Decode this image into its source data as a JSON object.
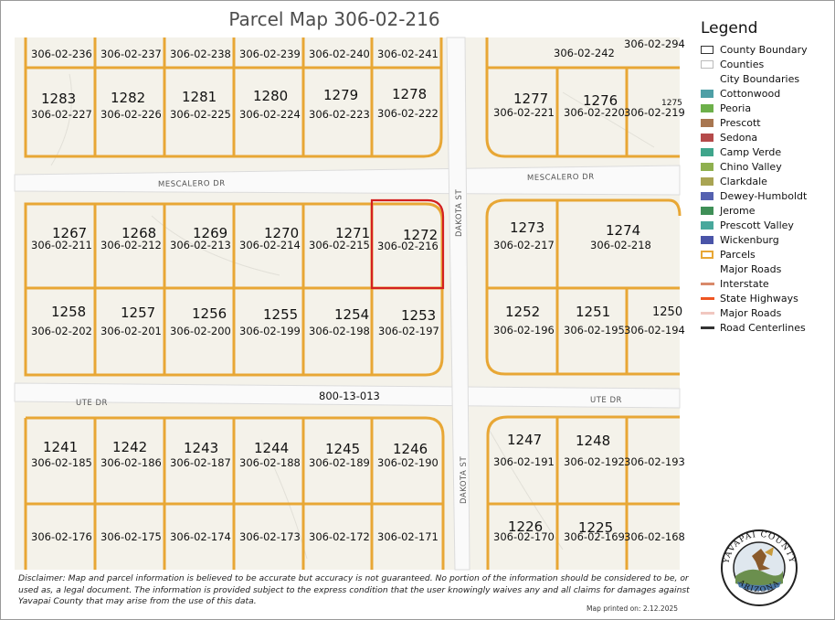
{
  "title": "Parcel Map 306-02-216",
  "roads": {
    "mescalero_left": "MESCALERO DR",
    "mescalero_right": "MESCALERO DR",
    "ute_left": "UTE DR",
    "ute_right": "UTE DR",
    "dakota_upper": "DAKOTA ST",
    "dakota_lower": "DAKOTA ST"
  },
  "other_parcel": "800-13-013",
  "parcels": [
    {
      "apn": "306-02-236",
      "lot": ""
    },
    {
      "apn": "306-02-237",
      "lot": ""
    },
    {
      "apn": "306-02-238",
      "lot": ""
    },
    {
      "apn": "306-02-239",
      "lot": ""
    },
    {
      "apn": "306-02-240",
      "lot": ""
    },
    {
      "apn": "306-02-241",
      "lot": ""
    },
    {
      "apn": "306-02-242",
      "lot": ""
    },
    {
      "apn": "306-02-294",
      "lot": ""
    },
    {
      "apn": "306-02-227",
      "lot": "1283"
    },
    {
      "apn": "306-02-226",
      "lot": "1282"
    },
    {
      "apn": "306-02-225",
      "lot": "1281"
    },
    {
      "apn": "306-02-224",
      "lot": "1280"
    },
    {
      "apn": "306-02-223",
      "lot": "1279"
    },
    {
      "apn": "306-02-222",
      "lot": "1278"
    },
    {
      "apn": "306-02-221",
      "lot": "1277"
    },
    {
      "apn": "306-02-220",
      "lot": "1276"
    },
    {
      "apn": "306-02-219",
      "lot": "1275"
    },
    {
      "apn": "306-02-211",
      "lot": "1267"
    },
    {
      "apn": "306-02-212",
      "lot": "1268"
    },
    {
      "apn": "306-02-213",
      "lot": "1269"
    },
    {
      "apn": "306-02-214",
      "lot": "1270"
    },
    {
      "apn": "306-02-215",
      "lot": "1271"
    },
    {
      "apn": "306-02-216",
      "lot": "1272"
    },
    {
      "apn": "306-02-217",
      "lot": "1273"
    },
    {
      "apn": "306-02-218",
      "lot": "1274"
    },
    {
      "apn": "306-02-202",
      "lot": "1258"
    },
    {
      "apn": "306-02-201",
      "lot": "1257"
    },
    {
      "apn": "306-02-200",
      "lot": "1256"
    },
    {
      "apn": "306-02-199",
      "lot": "1255"
    },
    {
      "apn": "306-02-198",
      "lot": "1254"
    },
    {
      "apn": "306-02-197",
      "lot": "1253"
    },
    {
      "apn": "306-02-196",
      "lot": "1252"
    },
    {
      "apn": "306-02-195",
      "lot": "1251"
    },
    {
      "apn": "306-02-194",
      "lot": "1250"
    },
    {
      "apn": "306-02-185",
      "lot": "1241"
    },
    {
      "apn": "306-02-186",
      "lot": "1242"
    },
    {
      "apn": "306-02-187",
      "lot": "1243"
    },
    {
      "apn": "306-02-188",
      "lot": "1244"
    },
    {
      "apn": "306-02-189",
      "lot": "1245"
    },
    {
      "apn": "306-02-190",
      "lot": "1246"
    },
    {
      "apn": "306-02-191",
      "lot": "1247"
    },
    {
      "apn": "306-02-192",
      "lot": "1248"
    },
    {
      "apn": "306-02-193",
      "lot": ""
    },
    {
      "apn": "306-02-176",
      "lot": ""
    },
    {
      "apn": "306-02-175",
      "lot": ""
    },
    {
      "apn": "306-02-174",
      "lot": ""
    },
    {
      "apn": "306-02-173",
      "lot": ""
    },
    {
      "apn": "306-02-172",
      "lot": ""
    },
    {
      "apn": "306-02-171",
      "lot": ""
    },
    {
      "apn": "306-02-170",
      "lot": "1226"
    },
    {
      "apn": "306-02-169",
      "lot": "1225"
    },
    {
      "apn": "306-02-168",
      "lot": ""
    }
  ],
  "selected_parcel": "306-02-216",
  "legend": {
    "title": "Legend",
    "items": [
      {
        "label": "County Boundary",
        "kind": "box",
        "color": "#ffffff",
        "stroke": "#333333"
      },
      {
        "label": "Counties",
        "kind": "box",
        "color": "#ffffff",
        "stroke": "#bbbbbb"
      },
      {
        "label": "City Boundaries",
        "kind": "none",
        "color": "",
        "stroke": ""
      },
      {
        "label": "Cottonwood",
        "kind": "box",
        "color": "#4e9fa6",
        "stroke": "#4e9fa6"
      },
      {
        "label": "Peoria",
        "kind": "box",
        "color": "#6db04a",
        "stroke": "#6db04a"
      },
      {
        "label": "Prescott",
        "kind": "box",
        "color": "#a87650",
        "stroke": "#a87650"
      },
      {
        "label": "Sedona",
        "kind": "box",
        "color": "#b54a4a",
        "stroke": "#b54a4a"
      },
      {
        "label": "Camp Verde",
        "kind": "box",
        "color": "#3fa58b",
        "stroke": "#3fa58b"
      },
      {
        "label": "Chino Valley",
        "kind": "box",
        "color": "#8fb04f",
        "stroke": "#8fb04f"
      },
      {
        "label": "Clarkdale",
        "kind": "box",
        "color": "#a9a453",
        "stroke": "#a9a453"
      },
      {
        "label": "Dewey-Humboldt",
        "kind": "box",
        "color": "#5561b0",
        "stroke": "#5561b0"
      },
      {
        "label": "Jerome",
        "kind": "box",
        "color": "#3f8f57",
        "stroke": "#3f8f57"
      },
      {
        "label": "Prescott Valley",
        "kind": "box",
        "color": "#48a89c",
        "stroke": "#48a89c"
      },
      {
        "label": "Wickenburg",
        "kind": "box",
        "color": "#4a54a8",
        "stroke": "#4a54a8"
      },
      {
        "label": "Parcels",
        "kind": "box",
        "color": "#ffffff",
        "stroke": "#e8a735"
      },
      {
        "label": "Major Roads",
        "kind": "none",
        "color": "",
        "stroke": ""
      },
      {
        "label": "Interstate",
        "kind": "line",
        "color": "#d9896a",
        "stroke": ""
      },
      {
        "label": "State Highways",
        "kind": "line",
        "color": "#ee5522",
        "stroke": ""
      },
      {
        "label": "Major Roads",
        "kind": "line",
        "color": "#f1c7c0",
        "stroke": ""
      },
      {
        "label": "Road Centerlines",
        "kind": "line",
        "color": "#333333",
        "stroke": ""
      }
    ]
  },
  "disclaimer": "Disclaimer: Map and parcel information is believed to be accurate but accuracy is not guaranteed. No portion of the information should be considered to be, or used as, a legal document. The information is provided subject to the express condition that the user knowingly waives any and all claims for damages against Yavapai County that may arise from the use of this data.",
  "printed": "Map printed on: 2.12.2025",
  "seal": {
    "top_text": "YAVAPAI COUNTY",
    "bottom_text": "ARIZONA"
  },
  "colors": {
    "parcel_line": "#e8a735",
    "selected": "#d42020",
    "road": "#f7f7f7",
    "ground": "#f5f3ec"
  }
}
